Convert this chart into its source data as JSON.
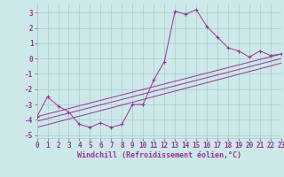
{
  "background_color": "#cce8e8",
  "grid_color": "#aacccc",
  "line_color": "#993399",
  "marker_color": "#993399",
  "xlabel": "Windchill (Refroidissement éolien,°C)",
  "xlim": [
    0,
    23
  ],
  "ylim": [
    -5.2,
    3.6
  ],
  "yticks": [
    -5,
    -4,
    -3,
    -2,
    -1,
    0,
    1,
    2,
    3
  ],
  "xticks": [
    0,
    1,
    2,
    3,
    4,
    5,
    6,
    7,
    8,
    9,
    10,
    11,
    12,
    13,
    14,
    15,
    16,
    17,
    18,
    19,
    20,
    21,
    22,
    23
  ],
  "series1_x": [
    0,
    1,
    2,
    3,
    4,
    5,
    6,
    7,
    8,
    9,
    10,
    11,
    12,
    13,
    14,
    15,
    16,
    17,
    18,
    19,
    20,
    21,
    22,
    23
  ],
  "series1_y": [
    -3.8,
    -2.5,
    -3.1,
    -3.5,
    -4.3,
    -4.5,
    -4.2,
    -4.5,
    -4.3,
    -3.0,
    -3.0,
    -1.4,
    -0.2,
    3.1,
    2.9,
    3.2,
    2.1,
    1.4,
    0.7,
    0.5,
    0.1,
    0.5,
    0.2,
    0.3
  ],
  "series2_x": [
    0,
    23
  ],
  "series2_y": [
    -3.8,
    0.3
  ],
  "series3_x": [
    0,
    23
  ],
  "series3_y": [
    -4.1,
    0.0
  ],
  "series4_x": [
    0,
    23
  ],
  "series4_y": [
    -4.5,
    -0.3
  ],
  "tick_fontsize": 5.5,
  "xlabel_fontsize": 6.0,
  "linewidth": 0.7,
  "markersize": 2.5
}
